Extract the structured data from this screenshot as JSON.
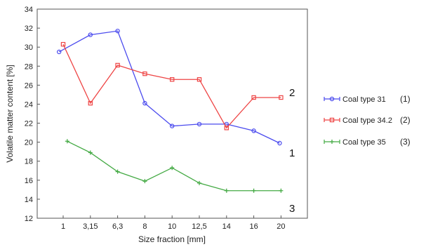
{
  "chart_data": {
    "type": "line",
    "xlabel": "Size fraction [mm]",
    "ylabel": "Volatile matter content [%]",
    "ylim": [
      12,
      34
    ],
    "yticks": [
      "12",
      "14",
      "16",
      "18",
      "20",
      "22",
      "24",
      "26",
      "28",
      "30",
      "32",
      "34"
    ],
    "categories": [
      "1",
      "3,15",
      "6,3",
      "8",
      "10",
      "12,5",
      "14",
      "16",
      "20"
    ],
    "grid": false,
    "legend_position": "right",
    "series": [
      {
        "name": "Coal type 31",
        "legend_number": "(1)",
        "end_label": "1",
        "color": "#4a4aee",
        "marker": "circle",
        "values": [
          29.5,
          31.3,
          31.7,
          24.1,
          21.7,
          21.9,
          21.9,
          21.2,
          19.9
        ],
        "x_offset": [
          -0.15,
          0,
          0,
          0,
          0,
          0,
          0,
          0,
          -0.05
        ]
      },
      {
        "name": "Coal type 34.2",
        "legend_number": "(2)",
        "end_label": "2",
        "color": "#ee4444",
        "marker": "square",
        "values": [
          30.3,
          24.1,
          28.1,
          27.2,
          26.6,
          26.6,
          21.5,
          24.7,
          24.7
        ],
        "x_offset": [
          0,
          0,
          0,
          0,
          0,
          0,
          0,
          0,
          0
        ]
      },
      {
        "name": "Coal type  35",
        "legend_number": "(3)",
        "end_label": "3",
        "color": "#44aa44",
        "marker": "plus",
        "values": [
          20.1,
          18.9,
          16.9,
          15.9,
          17.3,
          15.7,
          14.9,
          14.9,
          14.9
        ],
        "x_offset": [
          0.15,
          0,
          0,
          0,
          0,
          0,
          0,
          0,
          0
        ]
      }
    ]
  }
}
